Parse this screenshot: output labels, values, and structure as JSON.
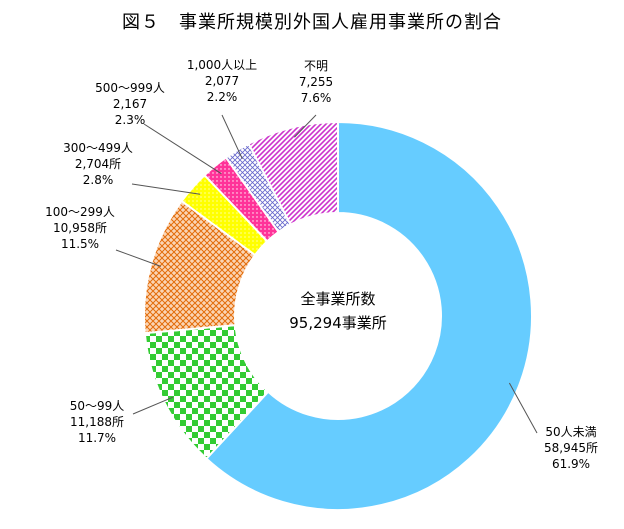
{
  "chart_data": {
    "type": "pie",
    "title": "図５　事業所規模別外国人雇用事業所の割合",
    "center_label": [
      "全事業所数",
      "95,294事業所"
    ],
    "slices": [
      {
        "name": "50人未満",
        "count": "58,945所",
        "pct": "61.9%",
        "value": 58945,
        "percent": 61.9,
        "color": "#66CCFF",
        "pattern": "solid"
      },
      {
        "name": "50〜99人",
        "count": "11,188所",
        "pct": "11.7%",
        "value": 11188,
        "percent": 11.7,
        "color": "#33CC33",
        "pattern": "checker"
      },
      {
        "name": "100〜299人",
        "count": "10,958所",
        "pct": "11.5%",
        "value": 10958,
        "percent": 11.5,
        "color": "#F79646",
        "pattern": "crosshatch"
      },
      {
        "name": "300〜499人",
        "count": "2,704所",
        "pct": "2.8%",
        "value": 2704,
        "percent": 2.8,
        "color": "#FFFF00",
        "pattern": "dots"
      },
      {
        "name": "500〜999人",
        "count": "2,167",
        "pct": "2.3%",
        "value": 2167,
        "percent": 2.3,
        "color": "#FF3399",
        "pattern": "dots"
      },
      {
        "name": "1,000人以上",
        "count": "2,077",
        "pct": "2.2%",
        "value": 2077,
        "percent": 2.2,
        "color": "#9999DD",
        "pattern": "grid"
      },
      {
        "name": "不明",
        "count": "7,255",
        "pct": "7.6%",
        "value": 7255,
        "percent": 7.6,
        "color": "#CC33CC",
        "pattern": "diagonal"
      }
    ]
  }
}
